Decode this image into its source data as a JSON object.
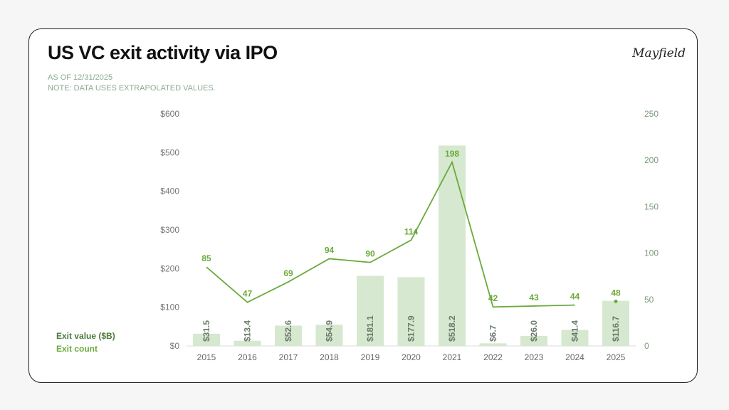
{
  "header": {
    "title": "US VC exit activity via IPO",
    "logo": "Mayfield",
    "as_of": "AS OF 12/31/2025",
    "note": "NOTE: DATA USES EXTRAPOLATED VALUES."
  },
  "chart_data": {
    "type": "bar+line",
    "categories": [
      "2015",
      "2016",
      "2017",
      "2018",
      "2019",
      "2020",
      "2021",
      "2022",
      "2023",
      "2024",
      "2025"
    ],
    "series": [
      {
        "name": "Exit value ($B)",
        "type": "bar",
        "axis": "left",
        "values": [
          31.5,
          13.4,
          52.6,
          54.9,
          181.1,
          177.9,
          518.2,
          6.7,
          26.0,
          41.4,
          116.7
        ],
        "labels": [
          "$31.5",
          "$13.4",
          "$52.6",
          "$54.9",
          "$181.1",
          "$177.9",
          "$518.2",
          "$6.7",
          "$26.0",
          "$41.4",
          "$116.7"
        ],
        "color": "#d6e8cf"
      },
      {
        "name": "Exit count",
        "type": "line",
        "axis": "right",
        "values": [
          85,
          47,
          69,
          94,
          90,
          114,
          198,
          42,
          43,
          44,
          48
        ],
        "color": "#6aaa3a"
      }
    ],
    "left_axis": {
      "range": [
        0,
        600
      ],
      "ticks": [
        "$0",
        "$100",
        "$200",
        "$300",
        "$400",
        "$500",
        "$600"
      ]
    },
    "right_axis": {
      "range": [
        0,
        250
      ],
      "ticks": [
        "0",
        "50",
        "100",
        "150",
        "200",
        "250"
      ]
    },
    "legend_placement": "bottom-left",
    "grid": false
  }
}
